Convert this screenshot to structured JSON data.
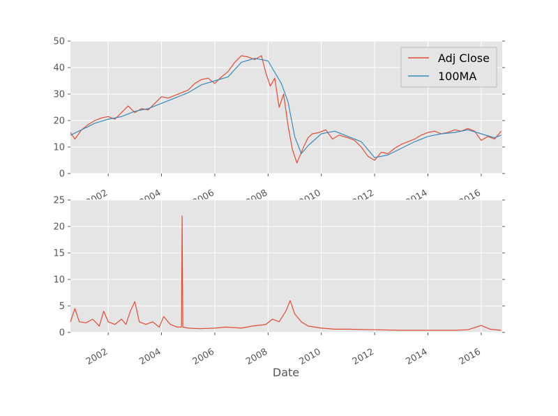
{
  "colors": {
    "background": "#E5E5E5",
    "grid": "#FFFFFF",
    "series_adj_close": "#E24A33",
    "series_100ma": "#348ABD",
    "tick_text": "#555555"
  },
  "chart_data": [
    {
      "type": "line",
      "xlabel": "",
      "ylabel": "",
      "ylim": [
        0,
        50
      ],
      "xlim": [
        "2000-08-01",
        "2016-10-15"
      ],
      "yticks": [
        0,
        10,
        20,
        30,
        40,
        50
      ],
      "xticks": [
        "2002",
        "2004",
        "2006",
        "2008",
        "2010",
        "2012",
        "2014",
        "2016"
      ],
      "grid": true,
      "legend": "top-right",
      "series": [
        {
          "name": "Adj Close",
          "color": "#E24A33",
          "points": [
            [
              "2000-08",
              15.5
            ],
            [
              "2000-10",
              13.0
            ],
            [
              "2001-01",
              16.5
            ],
            [
              "2001-04",
              18.5
            ],
            [
              "2001-07",
              20.0
            ],
            [
              "2001-10",
              21.0
            ],
            [
              "2002-01",
              21.5
            ],
            [
              "2002-04",
              20.5
            ],
            [
              "2002-07",
              23.0
            ],
            [
              "2002-10",
              25.5
            ],
            [
              "2003-01",
              23.0
            ],
            [
              "2003-04",
              24.5
            ],
            [
              "2003-07",
              24.0
            ],
            [
              "2003-10",
              26.5
            ],
            [
              "2004-01",
              29.0
            ],
            [
              "2004-04",
              28.5
            ],
            [
              "2004-07",
              29.5
            ],
            [
              "2004-10",
              30.5
            ],
            [
              "2005-01",
              31.5
            ],
            [
              "2005-04",
              34.0
            ],
            [
              "2005-07",
              35.5
            ],
            [
              "2005-10",
              36.0
            ],
            [
              "2006-01",
              34.0
            ],
            [
              "2006-04",
              36.5
            ],
            [
              "2006-07",
              38.5
            ],
            [
              "2006-10",
              42.0
            ],
            [
              "2007-01",
              44.5
            ],
            [
              "2007-04",
              44.0
            ],
            [
              "2007-07",
              43.0
            ],
            [
              "2007-10",
              44.5
            ],
            [
              "2007-12",
              38.0
            ],
            [
              "2008-02",
              33.0
            ],
            [
              "2008-04",
              36.0
            ],
            [
              "2008-06",
              25.0
            ],
            [
              "2008-08",
              30.0
            ],
            [
              "2008-10",
              18.0
            ],
            [
              "2008-12",
              9.0
            ],
            [
              "2009-02",
              4.0
            ],
            [
              "2009-03",
              6.0
            ],
            [
              "2009-05",
              10.0
            ],
            [
              "2009-07",
              13.5
            ],
            [
              "2009-09",
              15.0
            ],
            [
              "2009-12",
              15.5
            ],
            [
              "2010-03",
              16.5
            ],
            [
              "2010-06",
              13.0
            ],
            [
              "2010-09",
              14.5
            ],
            [
              "2011-01",
              13.5
            ],
            [
              "2011-04",
              12.5
            ],
            [
              "2011-07",
              10.0
            ],
            [
              "2011-10",
              6.5
            ],
            [
              "2012-01",
              5.0
            ],
            [
              "2012-04",
              8.0
            ],
            [
              "2012-07",
              7.5
            ],
            [
              "2012-10",
              9.5
            ],
            [
              "2013-01",
              11.0
            ],
            [
              "2013-04",
              12.0
            ],
            [
              "2013-07",
              13.0
            ],
            [
              "2013-10",
              14.5
            ],
            [
              "2014-01",
              15.5
            ],
            [
              "2014-04",
              16.0
            ],
            [
              "2014-07",
              15.0
            ],
            [
              "2014-10",
              15.5
            ],
            [
              "2015-01",
              16.5
            ],
            [
              "2015-04",
              16.0
            ],
            [
              "2015-07",
              17.0
            ],
            [
              "2015-10",
              16.0
            ],
            [
              "2016-01",
              12.5
            ],
            [
              "2016-04",
              14.0
            ],
            [
              "2016-07",
              13.0
            ],
            [
              "2016-10",
              16.0
            ]
          ]
        },
        {
          "name": "100MA",
          "color": "#348ABD",
          "points": [
            [
              "2000-08",
              14.5
            ],
            [
              "2001-01",
              16.5
            ],
            [
              "2001-07",
              19.0
            ],
            [
              "2002-01",
              20.5
            ],
            [
              "2002-07",
              21.5
            ],
            [
              "2003-01",
              23.5
            ],
            [
              "2003-07",
              24.5
            ],
            [
              "2004-01",
              26.5
            ],
            [
              "2004-07",
              28.5
            ],
            [
              "2005-01",
              30.5
            ],
            [
              "2005-07",
              33.5
            ],
            [
              "2006-01",
              35.0
            ],
            [
              "2006-07",
              36.5
            ],
            [
              "2007-01",
              42.0
            ],
            [
              "2007-07",
              43.5
            ],
            [
              "2008-01",
              42.5
            ],
            [
              "2008-07",
              34.0
            ],
            [
              "2008-10",
              27.0
            ],
            [
              "2009-01",
              14.0
            ],
            [
              "2009-04",
              7.5
            ],
            [
              "2009-07",
              10.5
            ],
            [
              "2010-01",
              15.0
            ],
            [
              "2010-07",
              16.0
            ],
            [
              "2011-01",
              14.0
            ],
            [
              "2011-07",
              12.0
            ],
            [
              "2012-01",
              6.0
            ],
            [
              "2012-07",
              7.0
            ],
            [
              "2013-01",
              9.5
            ],
            [
              "2013-07",
              12.0
            ],
            [
              "2014-01",
              14.0
            ],
            [
              "2014-07",
              15.0
            ],
            [
              "2015-01",
              15.5
            ],
            [
              "2015-07",
              16.5
            ],
            [
              "2016-01",
              15.0
            ],
            [
              "2016-07",
              13.5
            ],
            [
              "2016-10",
              14.5
            ]
          ]
        }
      ]
    },
    {
      "type": "line",
      "xlabel": "Date",
      "ylabel": "",
      "ylim": [
        0,
        25
      ],
      "xlim": [
        "2000-08-01",
        "2016-10-15"
      ],
      "yticks": [
        0,
        5,
        10,
        15,
        20,
        25
      ],
      "xticks": [
        "2002",
        "2004",
        "2006",
        "2008",
        "2010",
        "2012",
        "2014",
        "2016"
      ],
      "grid": true,
      "series": [
        {
          "color": "#E24A33",
          "points": [
            [
              "2000-08",
              2.0
            ],
            [
              "2000-10",
              4.5
            ],
            [
              "2000-12",
              2.0
            ],
            [
              "2001-03",
              1.8
            ],
            [
              "2001-06",
              2.5
            ],
            [
              "2001-09",
              1.2
            ],
            [
              "2001-11",
              4.0
            ],
            [
              "2002-01",
              2.0
            ],
            [
              "2002-04",
              1.5
            ],
            [
              "2002-07",
              2.5
            ],
            [
              "2002-09",
              1.5
            ],
            [
              "2002-11",
              4.0
            ],
            [
              "2003-01",
              5.8
            ],
            [
              "2003-03",
              2.0
            ],
            [
              "2003-06",
              1.5
            ],
            [
              "2003-09",
              2.0
            ],
            [
              "2003-12",
              1.0
            ],
            [
              "2004-02",
              3.0
            ],
            [
              "2004-05",
              1.5
            ],
            [
              "2004-08",
              1.0
            ],
            [
              "2004-10",
              1.0
            ],
            [
              "2004-10.3",
              22.0
            ],
            [
              "2004-10.6",
              1.0
            ],
            [
              "2005-01",
              0.8
            ],
            [
              "2005-06",
              0.7
            ],
            [
              "2006-01",
              0.8
            ],
            [
              "2006-06",
              1.0
            ],
            [
              "2007-01",
              0.8
            ],
            [
              "2007-06",
              1.2
            ],
            [
              "2007-12",
              1.5
            ],
            [
              "2008-03",
              2.5
            ],
            [
              "2008-06",
              2.0
            ],
            [
              "2008-09",
              4.0
            ],
            [
              "2008-11",
              6.0
            ],
            [
              "2009-01",
              3.5
            ],
            [
              "2009-04",
              2.0
            ],
            [
              "2009-07",
              1.2
            ],
            [
              "2010-01",
              0.8
            ],
            [
              "2010-07",
              0.6
            ],
            [
              "2011-01",
              0.6
            ],
            [
              "2012-01",
              0.5
            ],
            [
              "2013-01",
              0.4
            ],
            [
              "2014-01",
              0.4
            ],
            [
              "2015-01",
              0.4
            ],
            [
              "2015-07",
              0.5
            ],
            [
              "2016-01",
              1.3
            ],
            [
              "2016-05",
              0.6
            ],
            [
              "2016-10",
              0.4
            ]
          ]
        }
      ]
    }
  ]
}
